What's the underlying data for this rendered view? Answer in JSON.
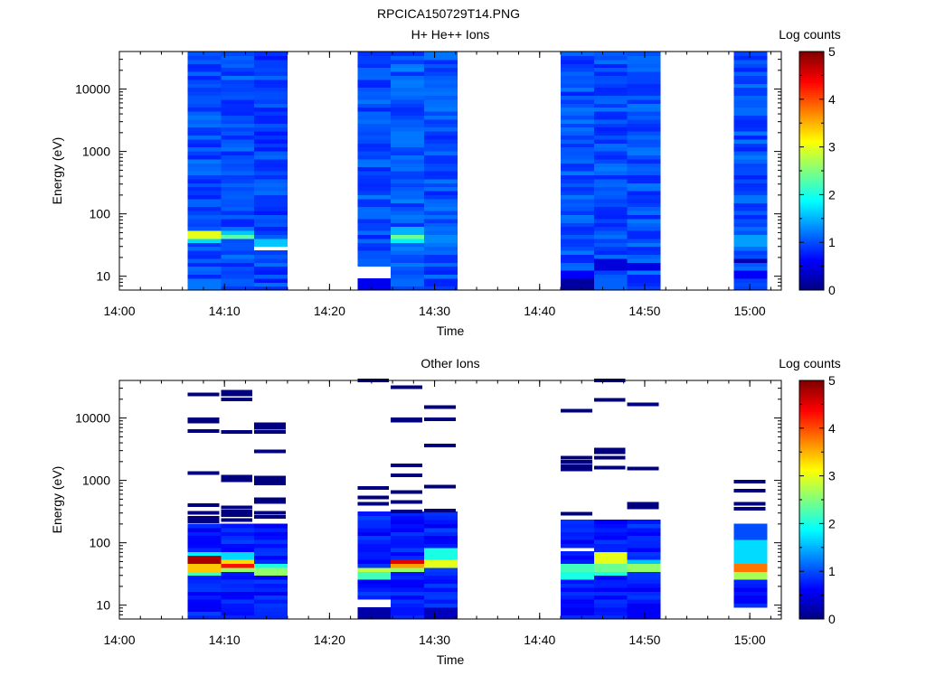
{
  "figure": {
    "title": "RPCICA150729T14.PNG",
    "palette": [
      "#00007f",
      "#0000ff",
      "#007fff",
      "#00ffff",
      "#7fff7f",
      "#ffff00",
      "#ff7f00",
      "#ff0000",
      "#7f0000"
    ]
  },
  "chart_data": [
    {
      "type": "heatmap",
      "title": "H+ He++ Ions",
      "xlabel": "Time",
      "ylabel": "Energy (eV)",
      "y_scale": "log",
      "ylim": [
        6,
        40000
      ],
      "xlim": [
        "14:00",
        "15:03"
      ],
      "x_ticks": [
        "14:00",
        "14:10",
        "14:20",
        "14:30",
        "14:40",
        "14:50",
        "15:00"
      ],
      "y_ticks": [
        "10",
        "100",
        "1000",
        "10000"
      ],
      "colorbar": {
        "label": "Log counts",
        "range": [
          0,
          5
        ],
        "ticks": [
          "0",
          "1",
          "2",
          "3",
          "4",
          "5"
        ]
      },
      "columns": [
        {
          "start": "14:06:30",
          "end": "14:09:40",
          "sparse": false,
          "base": 1.0,
          "features": [
            {
              "e": [
                40,
                56
              ],
              "v": 3.0
            },
            {
              "e": [
                35,
                40
              ],
              "v": 1.7
            },
            {
              "e": [
                6,
                10
              ],
              "v": 1.2
            }
          ]
        },
        {
          "start": "14:09:40",
          "end": "14:12:50",
          "sparse": false,
          "base": 1.0,
          "features": [
            {
              "e": [
                38,
                46
              ],
              "v": 2.3
            },
            {
              "e": [
                46,
                52
              ],
              "v": 1.6
            }
          ]
        },
        {
          "start": "14:12:50",
          "end": "14:16:00",
          "sparse": false,
          "base": 0.95,
          "features": [
            {
              "e": [
                28,
                32
              ],
              "v": -1
            },
            {
              "e": [
                32,
                38
              ],
              "v": 1.6
            }
          ]
        },
        {
          "start": "14:22:40",
          "end": "14:25:50",
          "sparse": false,
          "base": 1.0,
          "features": [
            {
              "e": [
                10,
                14
              ],
              "v": -1
            },
            {
              "e": [
                6,
                10
              ],
              "v": 0.55
            },
            {
              "e": [
                14,
                20
              ],
              "v": 1.1
            }
          ]
        },
        {
          "start": "14:25:50",
          "end": "14:29:00",
          "sparse": false,
          "base": 1.05,
          "features": [
            {
              "e": [
                40,
                48
              ],
              "v": 2.4
            },
            {
              "e": [
                34,
                40
              ],
              "v": 1.8
            },
            {
              "e": [
                48,
                60
              ],
              "v": 1.5
            }
          ]
        },
        {
          "start": "14:29:00",
          "end": "14:32:10",
          "sparse": false,
          "base": 1.0,
          "features": [
            {
              "e": [
                35,
                45
              ],
              "v": 1.3
            }
          ]
        },
        {
          "start": "14:42:00",
          "end": "14:45:10",
          "sparse": false,
          "base": 1.0,
          "features": [
            {
              "e": [
                6,
                9
              ],
              "v": 0.15
            },
            {
              "e": [
                9,
                13
              ],
              "v": 0.6
            }
          ]
        },
        {
          "start": "14:45:10",
          "end": "14:48:20",
          "sparse": false,
          "base": 1.0,
          "features": [
            {
              "e": [
                12,
                20
              ],
              "v": 0.45
            },
            {
              "e": [
                6,
                9
              ],
              "v": 1.1
            }
          ]
        },
        {
          "start": "14:48:20",
          "end": "14:51:30",
          "sparse": false,
          "base": 1.0,
          "features": [
            {
              "e": [
                12,
                18
              ],
              "v": 0.5
            }
          ]
        },
        {
          "start": "14:58:30",
          "end": "15:01:40",
          "sparse": false,
          "base": 1.0,
          "features": [
            {
              "e": [
                16,
                20
              ],
              "v": 0.25
            },
            {
              "e": [
                9,
                12
              ],
              "v": 0.6
            },
            {
              "e": [
                30,
                45
              ],
              "v": 1.4
            }
          ]
        }
      ]
    },
    {
      "type": "heatmap",
      "title": "Other Ions",
      "xlabel": "Time",
      "ylabel": "Energy (eV)",
      "y_scale": "log",
      "ylim": [
        6,
        40000
      ],
      "xlim": [
        "14:00",
        "15:03"
      ],
      "x_ticks": [
        "14:00",
        "14:10",
        "14:20",
        "14:30",
        "14:40",
        "14:50",
        "15:00"
      ],
      "y_ticks": [
        "10",
        "100",
        "1000",
        "10000"
      ],
      "colorbar": {
        "label": "Log counts",
        "range": [
          0,
          5
        ],
        "ticks": [
          "0",
          "1",
          "2",
          "3",
          "4",
          "5"
        ]
      },
      "columns": [
        {
          "start": "14:06:30",
          "end": "14:09:40",
          "sparse": true,
          "dense_to": 200,
          "features": [
            {
              "e": [
                44,
                62
              ],
              "v": 4.8
            },
            {
              "e": [
                36,
                44
              ],
              "v": 3.4
            },
            {
              "e": [
                30,
                36
              ],
              "v": 2.2
            },
            {
              "e": [
                62,
                75
              ],
              "v": 1.8
            }
          ],
          "lines": [
            24000,
            9500,
            8800,
            6200,
            1300,
            400,
            300,
            250,
            220
          ]
        },
        {
          "start": "14:09:40",
          "end": "14:12:50",
          "sparse": true,
          "dense_to": 200,
          "features": [
            {
              "e": [
                48,
                58
              ],
              "v": 3.3
            },
            {
              "e": [
                40,
                48
              ],
              "v": 4.3
            },
            {
              "e": [
                34,
                40
              ],
              "v": 2.6
            },
            {
              "e": [
                58,
                70
              ],
              "v": 1.7
            }
          ],
          "lines": [
            26500,
            24000,
            20000,
            6000,
            1150,
            1000,
            370,
            320,
            280,
            230
          ]
        },
        {
          "start": "14:12:50",
          "end": "14:16:00",
          "sparse": true,
          "dense_to": 200,
          "features": [
            {
              "e": [
                38,
                48
              ],
              "v": 2.0
            },
            {
              "e": [
                32,
                38
              ],
              "v": 2.6
            }
          ],
          "lines": [
            8000,
            7000,
            6000,
            2900,
            1100,
            1000,
            900,
            500,
            450,
            300,
            260
          ]
        },
        {
          "start": "14:22:40",
          "end": "14:25:50",
          "sparse": true,
          "dense_to": 320,
          "features": [
            {
              "e": [
                34,
                42
              ],
              "v": 2.8
            },
            {
              "e": [
                28,
                34
              ],
              "v": 2.2
            },
            {
              "e": [
                6,
                9
              ],
              "v": 0.2
            },
            {
              "e": [
                9,
                13
              ],
              "v": -1
            }
          ],
          "lines": [
            40000,
            750,
            530,
            420
          ]
        },
        {
          "start": "14:25:50",
          "end": "14:29:00",
          "sparse": true,
          "dense_to": 300,
          "features": [
            {
              "e": [
                48,
                58
              ],
              "v": 4.5
            },
            {
              "e": [
                40,
                48
              ],
              "v": 3.6
            },
            {
              "e": [
                34,
                40
              ],
              "v": 2.6
            }
          ],
          "lines": [
            31000,
            9500,
            9000,
            1750,
            1200,
            650,
            450,
            320
          ]
        },
        {
          "start": "14:29:00",
          "end": "14:32:10",
          "sparse": true,
          "dense_to": 300,
          "features": [
            {
              "e": [
                42,
                52
              ],
              "v": 3.0
            },
            {
              "e": [
                52,
                90
              ],
              "v": 2.0
            },
            {
              "e": [
                6,
                9
              ],
              "v": 0.3
            }
          ],
          "lines": [
            15000,
            9600,
            3600,
            800,
            330
          ]
        },
        {
          "start": "14:42:00",
          "end": "14:45:10",
          "sparse": true,
          "dense_to": 220,
          "features": [
            {
              "e": [
                34,
                44
              ],
              "v": 2.2
            },
            {
              "e": [
                28,
                34
              ],
              "v": 2.0
            },
            {
              "e": [
                70,
                80
              ],
              "v": -1
            }
          ],
          "lines": [
            13000,
            2300,
            2000,
            1700,
            1500,
            290
          ]
        },
        {
          "start": "14:45:10",
          "end": "14:48:20",
          "sparse": true,
          "dense_to": 220,
          "features": [
            {
              "e": [
                46,
                70
              ],
              "v": 3.0
            },
            {
              "e": [
                36,
                46
              ],
              "v": 2.4
            },
            {
              "e": [
                30,
                36
              ],
              "v": 2.0
            }
          ],
          "lines": [
            40000,
            19500,
            3100,
            2800,
            2300,
            1600
          ]
        },
        {
          "start": "14:48:20",
          "end": "14:51:30",
          "sparse": true,
          "dense_to": 220,
          "features": [
            {
              "e": [
                36,
                46
              ],
              "v": 2.6
            },
            {
              "e": [
                46,
                54
              ],
              "v": 1.6
            },
            {
              "e": [
                6,
                9
              ],
              "v": 0.6
            }
          ],
          "lines": [
            16500,
            1550,
            420,
            370
          ]
        },
        {
          "start": "14:58:30",
          "end": "15:01:40",
          "sparse": true,
          "dense_to": 200,
          "lowest": 9.5,
          "features": [
            {
              "e": [
                36,
                46
              ],
              "v": 3.8
            },
            {
              "e": [
                28,
                36
              ],
              "v": 2.7
            },
            {
              "e": [
                46,
                120
              ],
              "v": 1.7
            },
            {
              "e": [
                120,
                200
              ],
              "v": 1.0
            }
          ],
          "lines": [
            950,
            680,
            420,
            350
          ]
        }
      ]
    }
  ]
}
